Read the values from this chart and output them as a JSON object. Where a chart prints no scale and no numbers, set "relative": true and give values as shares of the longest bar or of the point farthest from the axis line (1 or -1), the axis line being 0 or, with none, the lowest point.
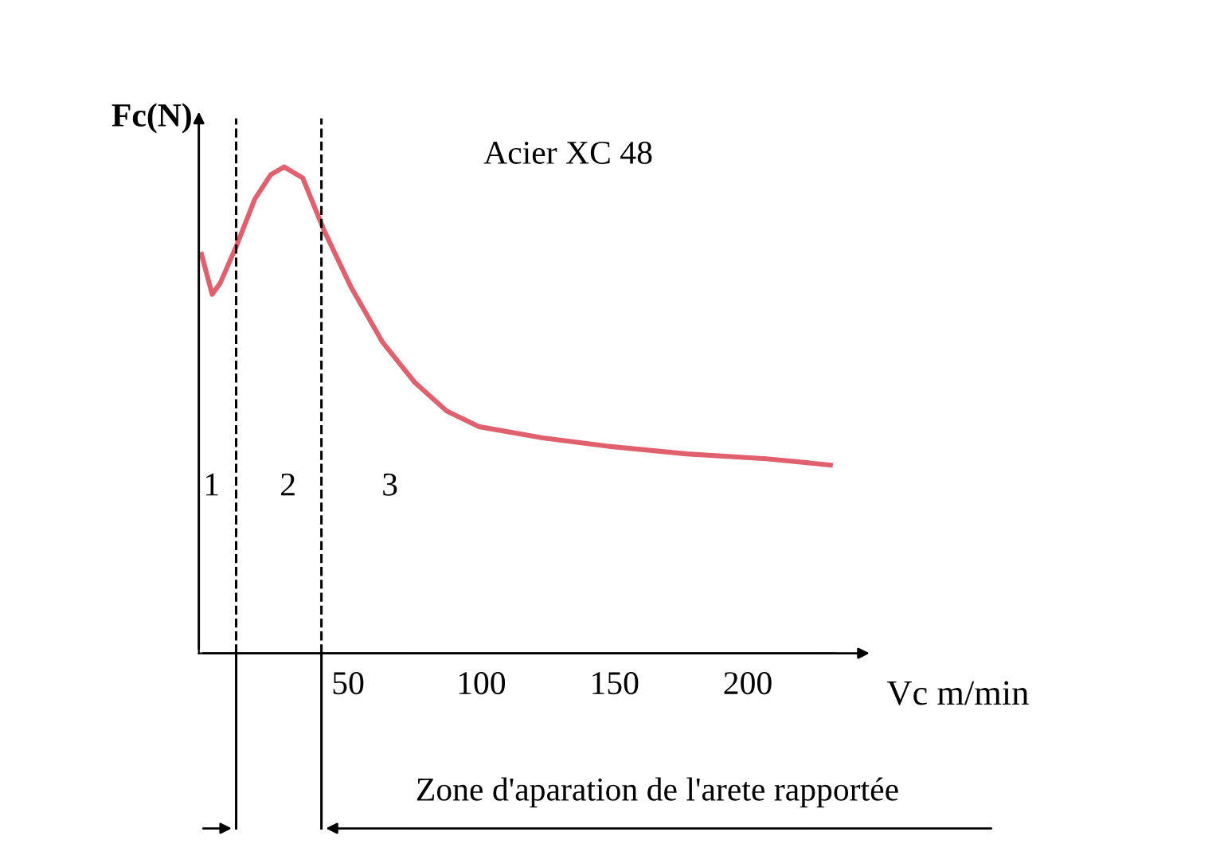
{
  "chart_data": {
    "type": "line",
    "relative": true,
    "xlabel": "Vc m/min",
    "ylabel": "Fc(N)",
    "x": [
      -5,
      -1,
      2,
      8,
      15,
      21,
      26,
      33,
      41,
      51,
      63,
      75,
      87,
      99,
      123,
      147,
      177,
      207,
      231
    ],
    "series": [
      {
        "color": "#e0606e",
        "values": [
          0.82,
          0.738,
          0.761,
          0.836,
          0.934,
          0.984,
          1.0,
          0.977,
          0.869,
          0.754,
          0.639,
          0.557,
          0.498,
          0.466,
          0.443,
          0.426,
          0.41,
          0.4,
          0.387
        ]
      }
    ],
    "xlim": [
      -6,
      233
    ],
    "xticks": [
      50,
      100,
      150,
      200
    ],
    "tick_labels": "x",
    "grid": false,
    "marker": "none",
    "line_style": "solid",
    "ref_lines": [
      {
        "axis": "x",
        "value": 8,
        "line_style": "dashed",
        "color": "#000000"
      },
      {
        "axis": "x",
        "value": 40,
        "line_style": "dashed",
        "color": "#000000"
      }
    ],
    "annotations": [
      "Acier XC 48",
      "1",
      "2",
      "3",
      "Zone d'aparation de l'arete rapportée"
    ]
  }
}
